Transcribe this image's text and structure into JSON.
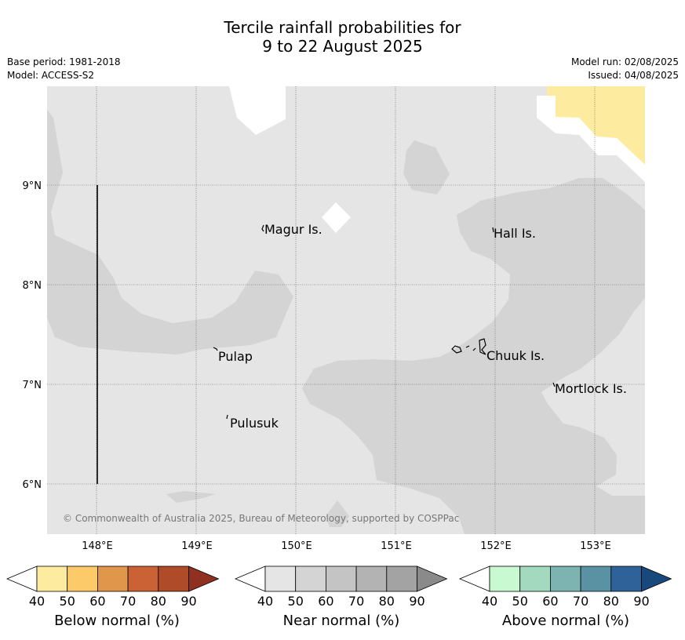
{
  "title": {
    "line1": "Tercile rainfall probabilities for",
    "line2": "9 to 22 August 2025"
  },
  "meta": {
    "base_period": "Base period: 1981-2018",
    "model": "Model: ACCESS-S2",
    "model_run": "Model run: 02/08/2025",
    "issued": "Issued: 04/08/2025"
  },
  "map": {
    "lon_labels": [
      "148°E",
      "149°E",
      "150°E",
      "151°E",
      "152°E",
      "153°E"
    ],
    "lat_labels": [
      "9°N",
      "8°N",
      "7°N",
      "6°N"
    ],
    "places": [
      "Magur Is.",
      "Hall Is.",
      "Pulap",
      "Chuuk Is.",
      "Mortlock Is.",
      "Pulusuk"
    ],
    "copyright": "© Commonwealth of Australia 2025, Bureau of Meteorology, supported by COSPPac",
    "colors": {
      "near_40": "#e5e5e5",
      "near_50": "#d4d4d4",
      "below_40": "#fdeca0",
      "no_dominant": "#ffffff"
    }
  },
  "legends": [
    {
      "label": "Below normal (%)",
      "ticks": [
        "40",
        "50",
        "60",
        "70",
        "80",
        "90"
      ],
      "colors": [
        "#fdeca0",
        "#fdca69",
        "#e1974b",
        "#ca6236",
        "#b04b2a",
        "#8f3020"
      ]
    },
    {
      "label": "Near normal (%)",
      "ticks": [
        "40",
        "50",
        "60",
        "70",
        "80",
        "90"
      ],
      "colors": [
        "#e5e5e5",
        "#d4d4d4",
        "#c4c4c4",
        "#b3b3b3",
        "#a3a3a3",
        "#8a8a8a"
      ]
    },
    {
      "label": "Above normal (%)",
      "ticks": [
        "40",
        "50",
        "60",
        "70",
        "80",
        "90"
      ],
      "colors": [
        "#c9f9d1",
        "#a3d9bf",
        "#7db3b0",
        "#5b92a3",
        "#2f6299",
        "#17497d"
      ]
    }
  ]
}
